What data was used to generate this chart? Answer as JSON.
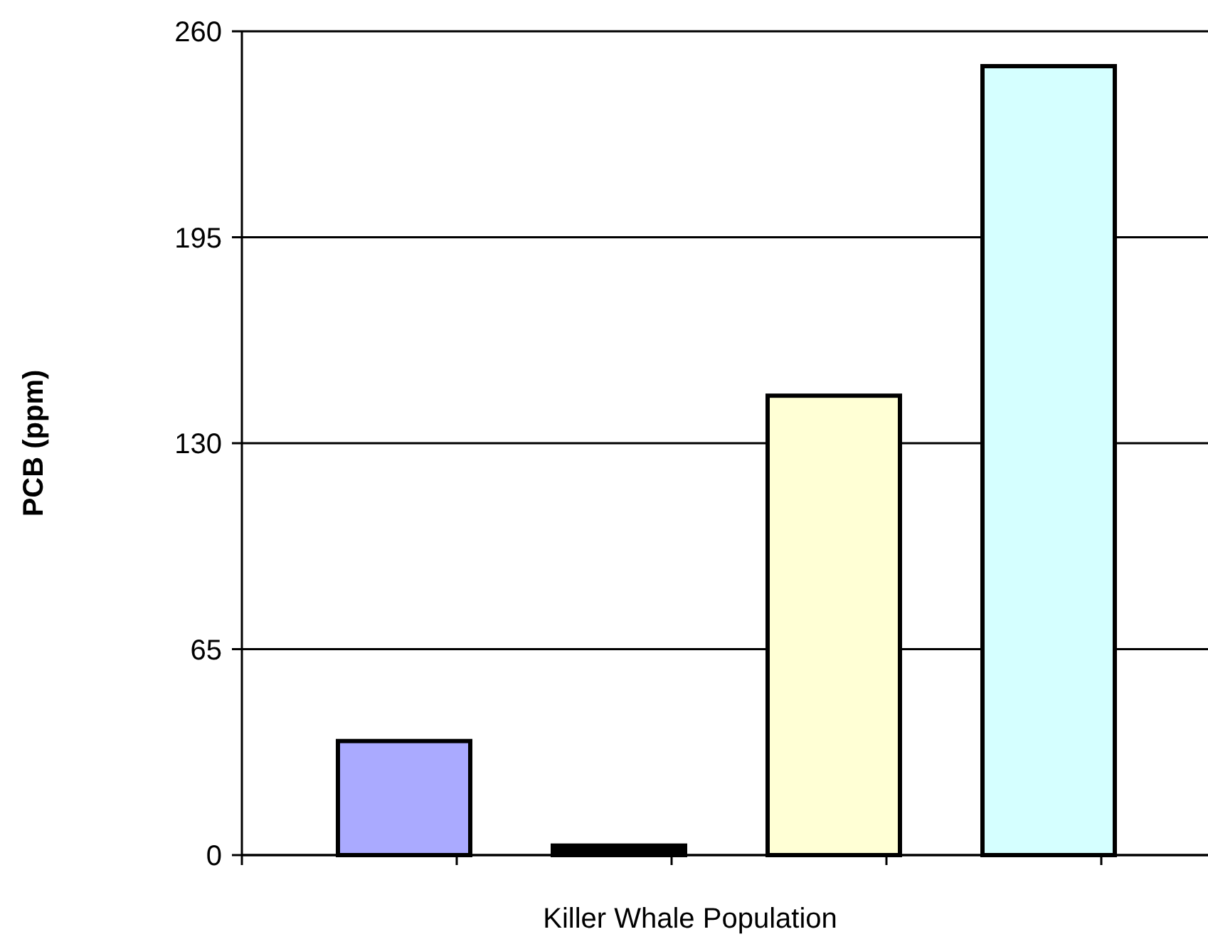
{
  "chart_data": {
    "type": "bar",
    "xlabel": "Killer Whale Population",
    "ylabel": "PCB (ppm)",
    "categories": [
      null,
      null,
      null,
      null
    ],
    "values": [
      36,
      3,
      145,
      249
    ],
    "colors": [
      "#aaaaff",
      "#000000",
      "#ffffd5",
      "#d5ffff"
    ],
    "ylim": [
      0,
      260
    ],
    "yticks": [
      0,
      65,
      130,
      195,
      260
    ],
    "grid": "y"
  }
}
